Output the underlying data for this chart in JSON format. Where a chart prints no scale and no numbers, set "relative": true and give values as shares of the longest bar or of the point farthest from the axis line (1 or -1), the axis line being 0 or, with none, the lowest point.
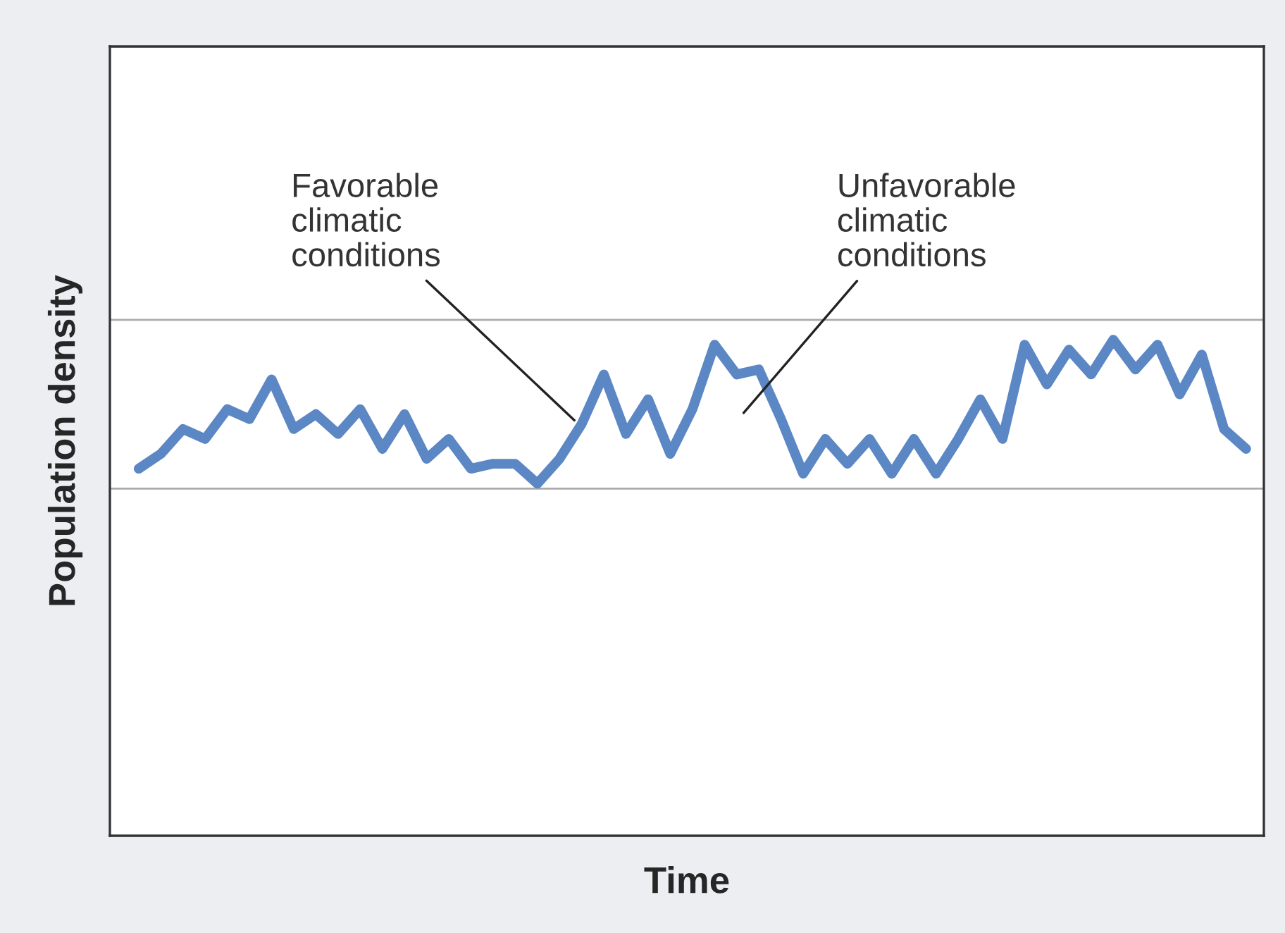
{
  "chart_data": {
    "type": "line",
    "relative": true,
    "xlabel": "Time",
    "ylabel": "Population density",
    "categories": [
      null,
      null,
      null,
      null,
      null,
      null,
      null,
      null,
      null,
      null,
      null,
      null,
      null,
      null,
      null,
      null,
      null,
      null,
      null,
      null,
      null,
      null,
      null,
      null,
      null,
      null,
      null,
      null,
      null,
      null,
      null,
      null,
      null,
      null,
      null,
      null,
      null,
      null,
      null,
      null,
      null,
      null,
      null,
      null,
      null,
      null,
      null,
      null,
      null,
      null,
      null
    ],
    "series": [
      {
        "color": "#5b87c5",
        "values": [
          0.74,
          0.77,
          0.82,
          0.8,
          0.86,
          0.84,
          0.92,
          0.82,
          0.85,
          0.81,
          0.86,
          0.78,
          0.85,
          0.76,
          0.8,
          0.74,
          0.75,
          0.75,
          0.71,
          0.76,
          0.83,
          0.93,
          0.81,
          0.88,
          0.77,
          0.86,
          0.99,
          0.93,
          0.94,
          0.84,
          0.73,
          0.8,
          0.75,
          0.8,
          0.73,
          0.8,
          0.73,
          0.8,
          0.88,
          0.8,
          0.99,
          0.91,
          0.98,
          0.93,
          1,
          0.94,
          0.99,
          0.89,
          0.97,
          0.82,
          0.78
        ]
      }
    ],
    "ref_lines": [
      {
        "axis": "y",
        "value": 1.04,
        "color": "#aaaaaa"
      },
      {
        "axis": "y",
        "value": 0.7,
        "color": "#aaaaaa"
      }
    ],
    "annotations": [
      "Favorable\nclimatic\nconditions",
      "Unfavorable\nclimatic\nconditions"
    ],
    "grid": false,
    "legend": false,
    "marker": "none",
    "line_style": "solid"
  }
}
